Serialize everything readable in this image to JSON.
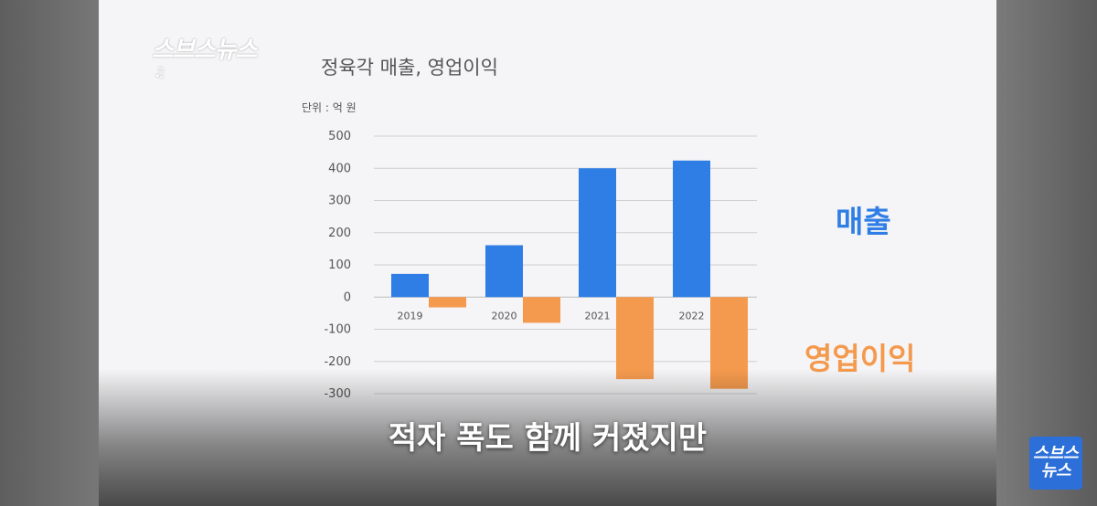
{
  "broadcaster": {
    "logo_text": "스브스뉴스",
    "corner_logo_line1": "스브스",
    "corner_logo_line2": "뉴스"
  },
  "subtitle": "적자 폭도 함께 커졌지만",
  "colors": {
    "sales": "#2e7ee6",
    "operating_profit": "#f49a4e"
  },
  "chart_data": {
    "type": "bar",
    "title": "정육각 매출, 영업이익",
    "unit_label": "단위 : 억 원",
    "categories": [
      "2019",
      "2020",
      "2021",
      "2022"
    ],
    "series": [
      {
        "name": "매출",
        "values": [
          72,
          161,
          400,
          424
        ]
      },
      {
        "name": "영업이익",
        "values": [
          -32,
          -80,
          -255,
          -285
        ]
      }
    ],
    "ylim": [
      -300,
      500
    ],
    "yticks": [
      500,
      400,
      300,
      200,
      100,
      0,
      -100,
      -200,
      -300
    ],
    "xlabel": "",
    "ylabel": "",
    "grid": true,
    "legend_placement": "right"
  }
}
